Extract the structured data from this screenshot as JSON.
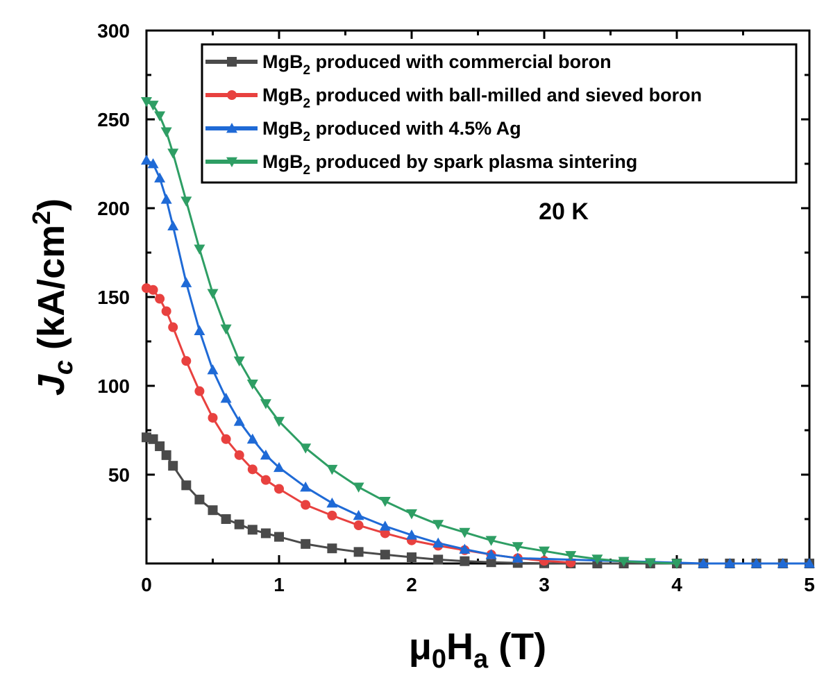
{
  "chart_data": {
    "type": "line",
    "xlabel": {
      "main": "μ",
      "sub1": "0",
      "mid": "H",
      "sub2": "a",
      "unit": " (T)"
    },
    "ylabel": {
      "main": "J",
      "sub": "c",
      "unit_pre": " (kA/cm",
      "sup": "2",
      "unit_post": ")"
    },
    "xlim": [
      0,
      5
    ],
    "ylim": [
      0,
      300
    ],
    "x_ticks": [
      "0",
      "1",
      "2",
      "3",
      "4",
      "5"
    ],
    "y_ticks": [
      "50",
      "100",
      "150",
      "200",
      "250",
      "300"
    ],
    "annotation": "20 K",
    "legend_placement": "top-right",
    "series": [
      {
        "name_main": "MgB",
        "name_sub": "2",
        "name_rest": " produced with commercial boron",
        "color": "#4a4a4a",
        "marker": "square",
        "x": [
          0,
          0.05,
          0.1,
          0.15,
          0.2,
          0.3,
          0.4,
          0.5,
          0.6,
          0.7,
          0.8,
          0.9,
          1.0,
          1.2,
          1.4,
          1.6,
          1.8,
          2.0,
          2.2,
          2.4,
          2.6,
          2.8,
          3.0,
          3.2,
          3.4,
          3.6,
          3.8,
          4.0,
          4.2,
          4.4,
          4.6,
          4.8,
          5.0
        ],
        "y": [
          71,
          70,
          66,
          61,
          55,
          44,
          36,
          30,
          25,
          22,
          19,
          17,
          15,
          11,
          8.5,
          6.5,
          5,
          3.5,
          2.2,
          1.3,
          0.7,
          0.3,
          0.1,
          0,
          0,
          0,
          0,
          0,
          0,
          0,
          0,
          0,
          0
        ]
      },
      {
        "name_main": "MgB",
        "name_sub": "2",
        "name_rest": " produced with ball-milled and sieved boron",
        "color": "#e8413f",
        "marker": "circle",
        "x": [
          0,
          0.05,
          0.1,
          0.15,
          0.2,
          0.3,
          0.4,
          0.5,
          0.6,
          0.7,
          0.8,
          0.9,
          1.0,
          1.2,
          1.4,
          1.6,
          1.8,
          2.0,
          2.2,
          2.4,
          2.6,
          2.8,
          3.0,
          3.2
        ],
        "y": [
          155,
          154,
          149,
          142,
          133,
          114,
          97,
          82,
          70,
          61,
          53,
          47,
          42,
          33,
          27,
          21.5,
          17,
          13,
          10,
          7.5,
          5,
          3,
          1.5,
          0.5
        ]
      },
      {
        "name_main": "MgB",
        "name_sub": "2",
        "name_rest": " produced with 4.5% Ag",
        "color": "#1f6ad6",
        "marker": "triangle-up",
        "x": [
          0,
          0.05,
          0.1,
          0.15,
          0.2,
          0.3,
          0.4,
          0.5,
          0.6,
          0.7,
          0.8,
          0.9,
          1.0,
          1.2,
          1.4,
          1.6,
          1.8,
          2.0,
          2.2,
          2.4,
          2.6,
          2.8,
          4.2,
          4.4,
          4.6,
          4.8,
          5.0
        ],
        "y": [
          227,
          225,
          217,
          205,
          190,
          158,
          131,
          109,
          93,
          80,
          70,
          61,
          54,
          43,
          34,
          27,
          21,
          16,
          11.5,
          8,
          5,
          3,
          0,
          0,
          0,
          0,
          0
        ]
      },
      {
        "name_main": "MgB",
        "name_sub": "2",
        "name_rest": " produced by spark plasma sintering",
        "color": "#2e9e64",
        "marker": "triangle-down",
        "x": [
          0,
          0.05,
          0.1,
          0.15,
          0.2,
          0.3,
          0.4,
          0.5,
          0.6,
          0.7,
          0.8,
          0.9,
          1.0,
          1.2,
          1.4,
          1.6,
          1.8,
          2.0,
          2.2,
          2.4,
          2.6,
          2.8,
          3.0,
          3.2,
          3.4,
          3.6,
          3.8,
          4.0
        ],
        "y": [
          260,
          258,
          252,
          243,
          231,
          204,
          177,
          152,
          132,
          114,
          101,
          90,
          80,
          65,
          53,
          43,
          35,
          28,
          22,
          17.5,
          13,
          9.5,
          7,
          4.5,
          2.5,
          1.2,
          0.5,
          0
        ]
      }
    ]
  }
}
